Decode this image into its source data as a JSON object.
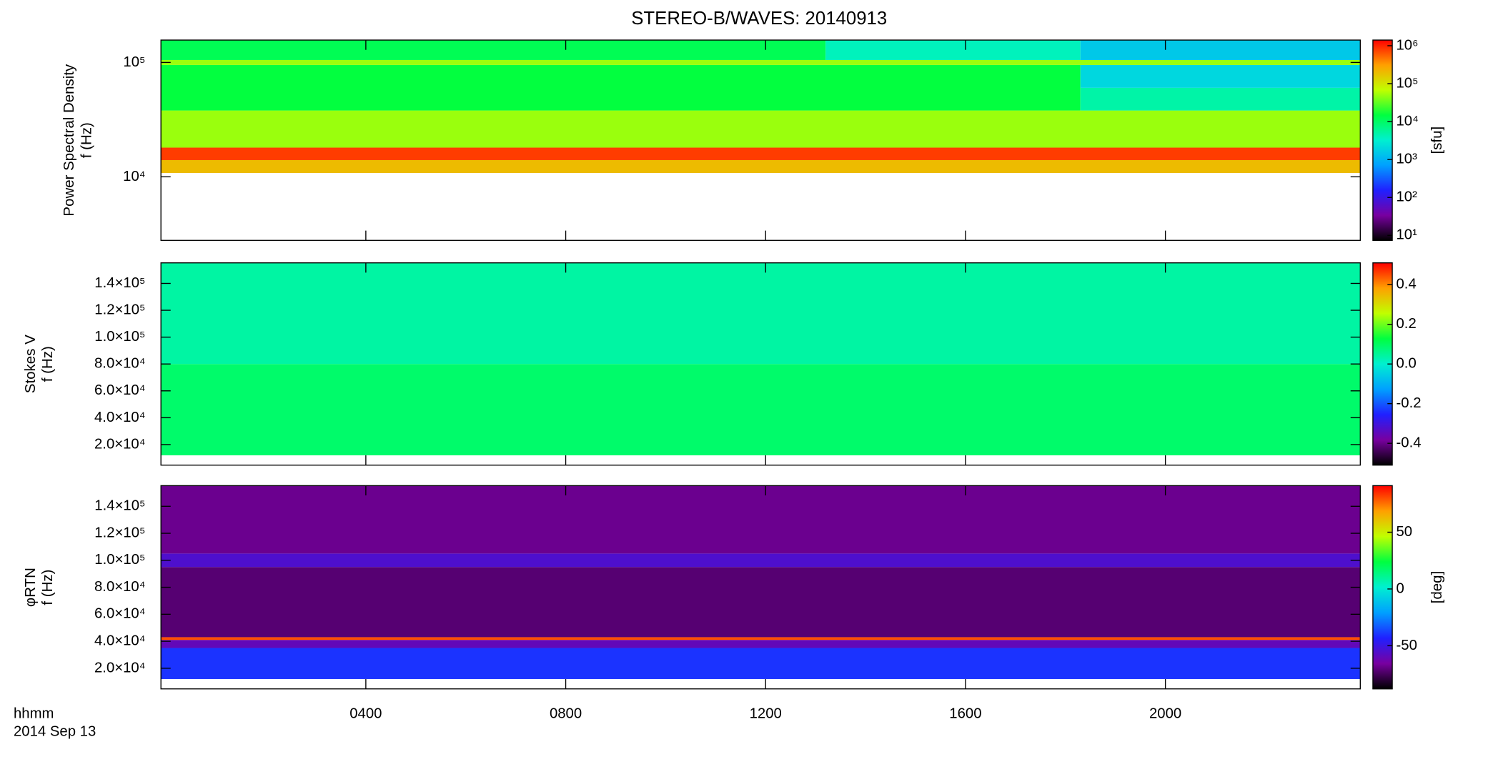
{
  "title": "STEREO-B/WAVES: 20140913",
  "x_labels": [
    "hhmm",
    "2014 Sep 13"
  ],
  "chart_data": [
    {
      "type": "heatmap",
      "ylabel": [
        "Power Spectral Density",
        "f (Hz)"
      ],
      "ylog": true,
      "ylim": [
        2780,
        157000
      ],
      "yticks": [
        {
          "value": 10000,
          "label": "10⁴"
        },
        {
          "value": 100000,
          "label": "10⁵"
        }
      ],
      "xlim": [
        -0.1,
        23.9
      ],
      "colorbar": {
        "label": "[sfu]",
        "log": true,
        "lim": [
          7.4,
          1410000
        ],
        "ticks": [
          {
            "value": 10,
            "label": "10¹"
          },
          {
            "value": 100,
            "label": "10²"
          },
          {
            "value": 1000,
            "label": "10³"
          },
          {
            "value": 10000,
            "label": "10⁴"
          },
          {
            "value": 100000,
            "label": "10⁵"
          },
          {
            "value": 1000000,
            "label": "10⁶"
          }
        ]
      },
      "colormap": [
        "#000000",
        "#7800a0",
        "#2020ff",
        "#00a0ff",
        "#00f0d0",
        "#00ff40",
        "#c0ff00",
        "#ffa000",
        "#ff0000"
      ],
      "cells": [
        {
          "t": [
            -0.1,
            23.9
          ],
          "f": [
            10800,
            14000
          ],
          "value": 200000
        },
        {
          "t": [
            -0.1,
            23.9
          ],
          "f": [
            14000,
            18000
          ],
          "value": 800000
        },
        {
          "t": [
            -0.1,
            23.9
          ],
          "f": [
            18000,
            38000
          ],
          "value": 50000
        },
        {
          "t": [
            -0.1,
            18.3
          ],
          "f": [
            38000,
            95000
          ],
          "value": 15000
        },
        {
          "t": [
            18.3,
            23.9
          ],
          "f": [
            38000,
            60000
          ],
          "value": 5000
        },
        {
          "t": [
            18.3,
            23.9
          ],
          "f": [
            60000,
            95000
          ],
          "value": 2000
        },
        {
          "t": [
            -0.1,
            23.9
          ],
          "f": [
            95000,
            105000
          ],
          "value": 50000
        },
        {
          "t": [
            -0.1,
            13.2
          ],
          "f": [
            105000,
            157000
          ],
          "value": 12000
        },
        {
          "t": [
            13.2,
            18.3
          ],
          "f": [
            105000,
            157000
          ],
          "value": 4000
        },
        {
          "t": [
            18.3,
            23.9
          ],
          "f": [
            105000,
            157000
          ],
          "value": 1500
        }
      ]
    },
    {
      "type": "heatmap",
      "ylabel": [
        "Stokes V",
        "f (Hz)"
      ],
      "ylog": false,
      "ylim": [
        4700,
        155300
      ],
      "yticks": [
        {
          "value": 20000,
          "label": "2.0×10⁴"
        },
        {
          "value": 40000,
          "label": "4.0×10⁴"
        },
        {
          "value": 60000,
          "label": "6.0×10⁴"
        },
        {
          "value": 80000,
          "label": "8.0×10⁴"
        },
        {
          "value": 100000,
          "label": "1.0×10⁵"
        },
        {
          "value": 120000,
          "label": "1.2×10⁵"
        },
        {
          "value": 140000,
          "label": "1.4×10⁵"
        }
      ],
      "xlim": [
        -0.1,
        23.9
      ],
      "colorbar": {
        "label": "",
        "log": false,
        "lim": [
          -0.51,
          0.51
        ],
        "ticks": [
          -0.4,
          -0.2,
          {
            "value": 0,
            "label": "0.0"
          },
          0.2,
          0.4
        ]
      },
      "colormap": [
        "#000000",
        "#7800a0",
        "#2020ff",
        "#00a0ff",
        "#00f0d0",
        "#00ff40",
        "#c0ff00",
        "#ffa000",
        "#ff0000"
      ],
      "cells": [
        {
          "t": [
            -0.1,
            23.9
          ],
          "f": [
            12000,
            80000
          ],
          "value": 0.09
        },
        {
          "t": [
            -0.1,
            23.9
          ],
          "f": [
            80000,
            155300
          ],
          "value": 0.04
        }
      ]
    },
    {
      "type": "heatmap",
      "ylabel": [
        "φRTN",
        "f (Hz)"
      ],
      "ylog": false,
      "ylim": [
        4700,
        155300
      ],
      "yticks": [
        {
          "value": 20000,
          "label": "2.0×10⁴"
        },
        {
          "value": 40000,
          "label": "4.0×10⁴"
        },
        {
          "value": 60000,
          "label": "6.0×10⁴"
        },
        {
          "value": 80000,
          "label": "8.0×10⁴"
        },
        {
          "value": 100000,
          "label": "1.0×10⁵"
        },
        {
          "value": 120000,
          "label": "1.2×10⁵"
        },
        {
          "value": 140000,
          "label": "1.4×10⁵"
        }
      ],
      "xlim": [
        -0.1,
        23.9
      ],
      "xticks": [
        {
          "value": 4,
          "label": "0400"
        },
        {
          "value": 8,
          "label": "0800"
        },
        {
          "value": 12,
          "label": "1200"
        },
        {
          "value": 16,
          "label": "1600"
        },
        {
          "value": 20,
          "label": "2000"
        }
      ],
      "colorbar": {
        "label": "[deg]",
        "log": false,
        "lim": [
          -88,
          91
        ],
        "ticks": [
          -50,
          0,
          50
        ]
      },
      "colormap": [
        "#000000",
        "#7800a0",
        "#2020ff",
        "#00a0ff",
        "#00f0d0",
        "#00ff40",
        "#c0ff00",
        "#ffa000",
        "#ff0000"
      ],
      "cells": [
        {
          "t": [
            -0.1,
            23.9
          ],
          "f": [
            12000,
            35000
          ],
          "value": -40
        },
        {
          "t": [
            -0.1,
            23.9
          ],
          "f": [
            35000,
            41000
          ],
          "value": -60
        },
        {
          "t": [
            -0.1,
            23.9
          ],
          "f": [
            41000,
            43000
          ],
          "value": 80
        },
        {
          "t": [
            -0.1,
            23.9
          ],
          "f": [
            43000,
            95000
          ],
          "value": -72
        },
        {
          "t": [
            -0.1,
            23.9
          ],
          "f": [
            95000,
            105000
          ],
          "value": -55
        },
        {
          "t": [
            -0.1,
            23.9
          ],
          "f": [
            105000,
            155300
          ],
          "value": -68
        }
      ]
    }
  ]
}
